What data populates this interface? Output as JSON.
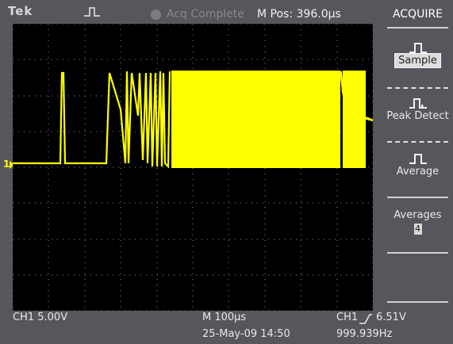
{
  "header": {
    "brand": "Tek",
    "acq_status": "Acq Complete",
    "mpos_label": "M Pos:",
    "mpos_value": "396.0μs"
  },
  "menu": {
    "title": "ACQUIRE",
    "items": [
      {
        "label": "Sample",
        "selected": true,
        "icon": "sample-waveform-icon"
      },
      {
        "label": "Peak Detect",
        "selected": false,
        "icon": "peak-detect-icon"
      },
      {
        "label": "Average",
        "selected": false,
        "icon": "average-waveform-icon"
      }
    ],
    "averages": {
      "label": "Averages",
      "value": "4"
    }
  },
  "readouts": {
    "ch1_scale": "CH1  5.00V",
    "timebase": "M 100μs",
    "trigger_source": "CH1",
    "trigger_level": "6.51V",
    "date_time": "25-May-09 14:50",
    "frequency": "999.939Hz"
  },
  "marker": {
    "ch1_ground_label": "1"
  },
  "colors": {
    "trace": "#ffff00",
    "graticule": "#9a9a9a",
    "background": "#000000",
    "panel": "#55575c"
  }
}
